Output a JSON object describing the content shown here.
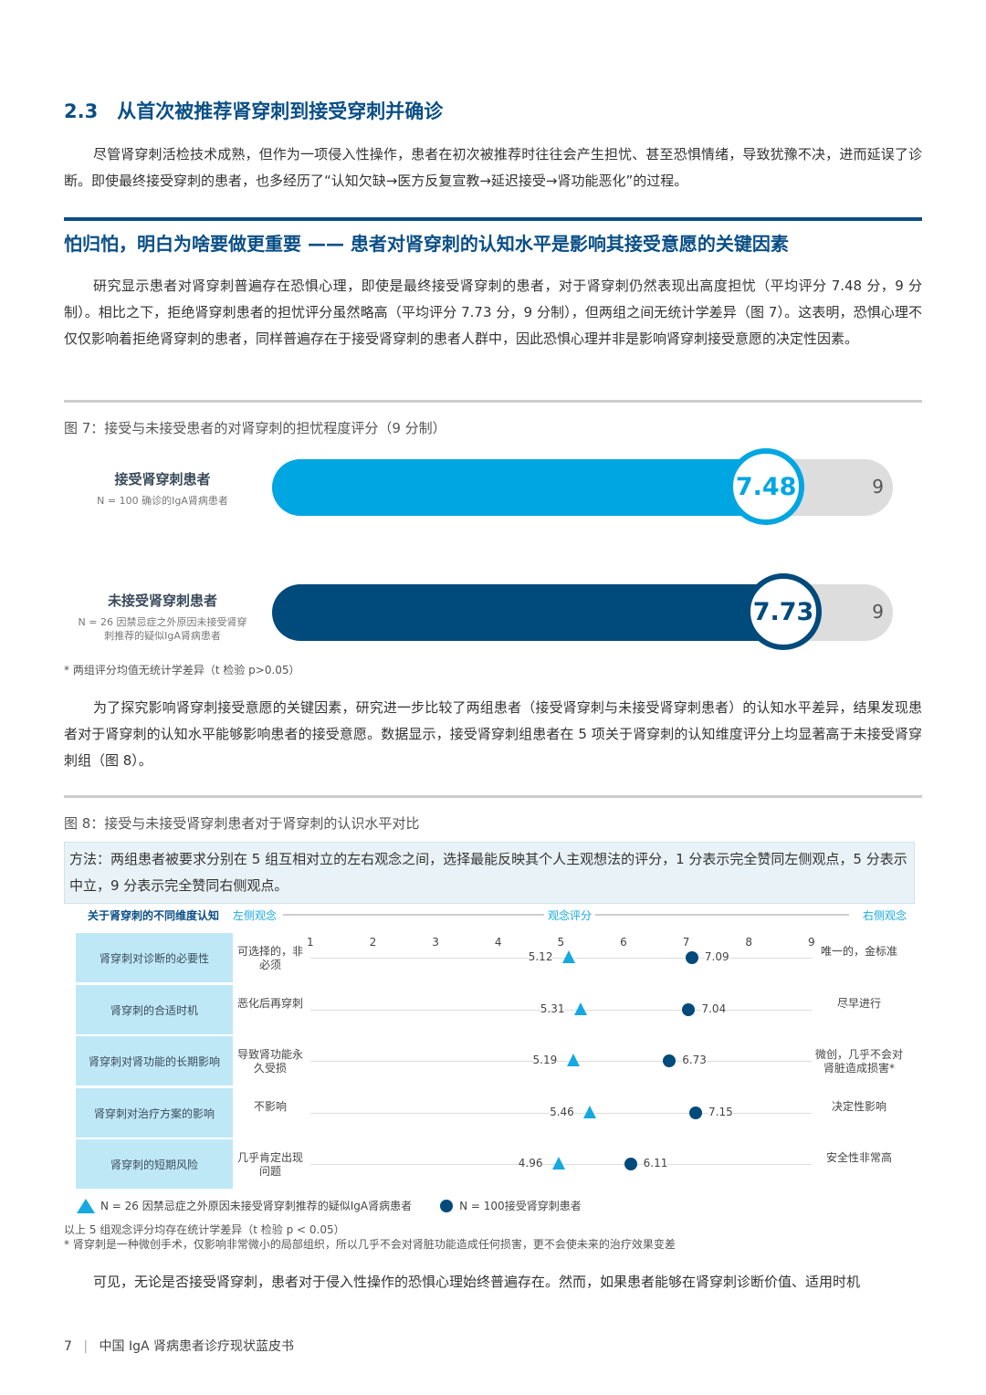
{
  "section": {
    "title": "2.3　从首次被推荐肾穿刺到接受穿刺并确诊",
    "para": "尽管肾穿刺活检技术成熟，但作为一项侵入性操作，患者在初次被推荐时往往会产生担忧、甚至恐惧情绪，导致犹豫不决，进而延误了诊断。即使最终接受穿刺的患者，也多经历了“认知欠缺→医方反复宣教→延迟接受→肾功能恶化”的过程。"
  },
  "highlight": {
    "title": "怕归怕，明白为啥要做更重要 —— 患者对肾穿刺的认知水平是影响其接受意愿的关键因素",
    "para": "研究显示患者对肾穿刺普遍存在恐惧心理，即使是最终接受肾穿刺的患者，对于肾穿刺仍然表现出高度担忧（平均评分 7.48 分，9 分制）。相比之下，拒绝肾穿刺患者的担忧评分虽然略高（平均评分 7.73 分，9 分制），但两组之间无统计学差异（图 7）。这表明，恐惧心理不仅仅影响着拒绝肾穿刺的患者，同样普遍存在于接受肾穿刺的患者人群中，因此恐惧心理并非是影响肾穿刺接受意愿的决定性因素。"
  },
  "fig7": {
    "title": "图 7：接受与未接受患者的对肾穿刺的担忧程度评分（9 分制）",
    "groups": [
      {
        "name": "接受肾穿刺患者",
        "sub": "N = 100 确诊的IgA肾病患者",
        "value": 7.48,
        "value_label": "7.48",
        "max": 9,
        "max_label": "9",
        "color": "#00a6e2"
      },
      {
        "name": "未接受肾穿刺患者",
        "sub": "N = 26 因禁忌症之外原因未接受肾穿刺推荐的疑似IgA肾病患者",
        "value": 7.73,
        "value_label": "7.73",
        "max": 9,
        "max_label": "9",
        "color": "#004a7c"
      }
    ],
    "note": "* 两组评分均值无统计学差异（t 检验 p>0.05）"
  },
  "para3": "为了探究影响肾穿刺接受意愿的关键因素，研究进一步比较了两组患者（接受肾穿刺与未接受肾穿刺患者）的认知水平差异，结果发现患者对于肾穿刺的认知水平能够影响患者的接受意愿。数据显示，接受肾穿刺组患者在 5 项关于肾穿刺的认知维度评分上均显著高于未接受肾穿刺组（图 8）。",
  "chart_data": {
    "type": "scatter",
    "title": "图 8：接受与未接受肾穿刺患者对于肾穿刺的认识水平对比",
    "method": "方法：两组患者被要求分别在 5 组互相对立的左右观念之间，选择最能反映其个人主观想法的评分，1 分表示完全赞同左侧观点，5 分表示中立，9 分表示完全赞同右侧观点。",
    "header": {
      "dimension": "关于肾穿刺的不同维度认知",
      "left": "左侧观念",
      "axis": "观念评分",
      "right": "右侧观念"
    },
    "ticks": [
      "1",
      "2",
      "3",
      "4",
      "5",
      "6",
      "7",
      "8",
      "9"
    ],
    "xlim": [
      1,
      9
    ],
    "rows": [
      {
        "dimension": "肾穿刺对诊断的必要性",
        "left": "可选择的，非必须",
        "right": "唯一的，金标准",
        "not_accepted": 5.12,
        "accepted": 7.09
      },
      {
        "dimension": "肾穿刺的合适时机",
        "left": "恶化后再穿刺",
        "right": "尽早进行",
        "not_accepted": 5.31,
        "accepted": 7.04
      },
      {
        "dimension": "肾穿刺对肾功能的长期影响",
        "left": "导致肾功能永久受损",
        "right": "微创，几乎不会对肾脏造成损害*",
        "not_accepted": 5.19,
        "accepted": 6.73
      },
      {
        "dimension": "肾穿刺对治疗方案的影响",
        "left": "不影响",
        "right": "决定性影响",
        "not_accepted": 5.46,
        "accepted": 7.15
      },
      {
        "dimension": "肾穿刺的短期风险",
        "left": "几乎肯定出现问题",
        "right": "安全性非常高",
        "not_accepted": 4.96,
        "accepted": 6.11
      }
    ],
    "series": [
      {
        "name": "N = 26 因禁忌症之外原因未接受肾穿刺推荐的疑似IgA肾病患者",
        "marker": "triangle",
        "color": "#16a9e1"
      },
      {
        "name": "N = 100接受肾穿刺患者",
        "marker": "circle",
        "color": "#004a7c"
      }
    ],
    "notes": [
      "以上 5 组观念评分均存在统计学差异（t 检验 p < 0.05）",
      "* 肾穿刺是一种微创手术，仅影响非常微小的局部组织，所以几乎不会对肾脏功能造成任何损害，更不会使未来的治疗效果变差"
    ]
  },
  "para4": "可见，无论是否接受肾穿刺，患者对于侵入性操作的恐惧心理始终普遍存在。然而，如果患者能够在肾穿刺诊断价值、适用时机",
  "footer": {
    "page": "7",
    "title": "中国 IgA 肾病患者诊疗现状蓝皮书"
  }
}
